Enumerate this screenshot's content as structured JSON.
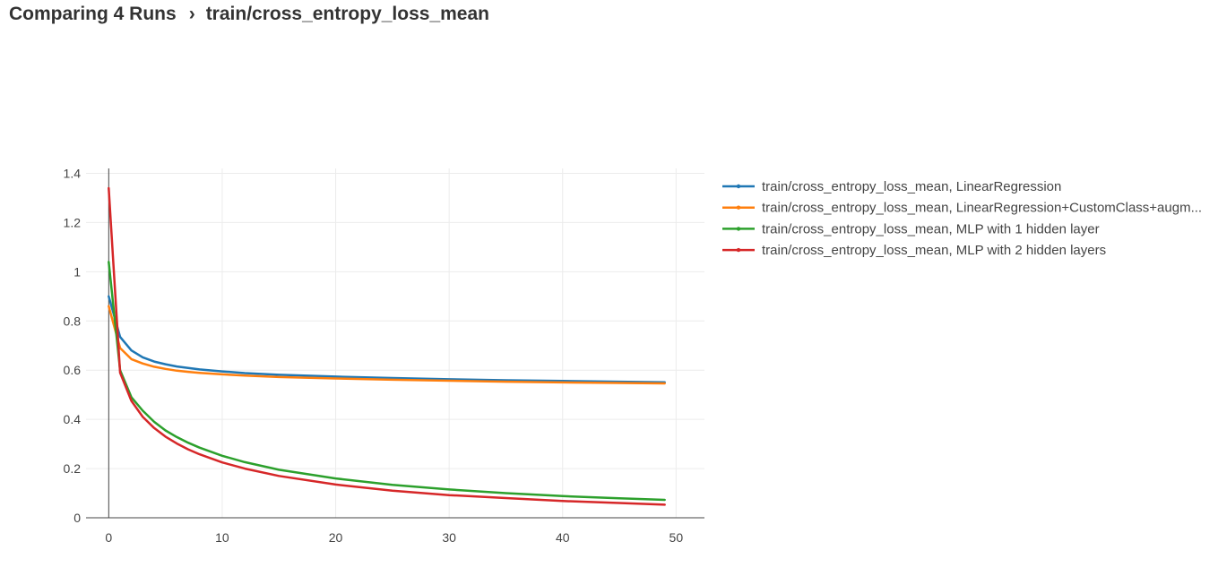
{
  "header": {
    "parent": "Comparing 4 Runs",
    "separator": "›",
    "current": "train/cross_entropy_loss_mean"
  },
  "chart_data": {
    "type": "line",
    "title": "",
    "xlabel": "",
    "ylabel": "",
    "xlim": [
      -2,
      52.5
    ],
    "ylim": [
      0,
      1.42
    ],
    "xticks": [
      0,
      10,
      20,
      30,
      40,
      50
    ],
    "yticks": [
      0,
      0.2,
      0.4,
      0.6,
      0.8,
      1,
      1.2,
      1.4
    ],
    "ytick_labels": [
      "0",
      "0.2",
      "0.4",
      "0.6",
      "0.8",
      "1",
      "1.2",
      "1.4"
    ],
    "grid": true,
    "legend_position": "right",
    "series": [
      {
        "name": "train/cross_entropy_loss_mean, LinearRegression",
        "color": "#1f77b4",
        "x": [
          0,
          1,
          2,
          3,
          4,
          5,
          6,
          7,
          8,
          10,
          12,
          15,
          20,
          25,
          30,
          35,
          40,
          45,
          49
        ],
        "y": [
          0.9,
          0.735,
          0.68,
          0.652,
          0.635,
          0.624,
          0.615,
          0.609,
          0.603,
          0.595,
          0.588,
          0.581,
          0.574,
          0.568,
          0.563,
          0.559,
          0.556,
          0.553,
          0.551
        ]
      },
      {
        "name": "train/cross_entropy_loss_mean, LinearRegression+CustomClass+augm...",
        "color": "#ff7f0e",
        "x": [
          0,
          1,
          2,
          3,
          4,
          5,
          6,
          7,
          8,
          10,
          12,
          15,
          20,
          25,
          30,
          35,
          40,
          45,
          49
        ],
        "y": [
          0.86,
          0.69,
          0.645,
          0.627,
          0.614,
          0.605,
          0.598,
          0.593,
          0.589,
          0.583,
          0.578,
          0.572,
          0.566,
          0.561,
          0.557,
          0.553,
          0.55,
          0.548,
          0.546
        ]
      },
      {
        "name": "train/cross_entropy_loss_mean, MLP with 1 hidden layer",
        "color": "#2ca02c",
        "x": [
          0,
          1,
          2,
          3,
          4,
          5,
          6,
          7,
          8,
          10,
          12,
          15,
          20,
          25,
          30,
          35,
          40,
          45,
          49
        ],
        "y": [
          1.04,
          0.6,
          0.49,
          0.435,
          0.39,
          0.355,
          0.328,
          0.305,
          0.285,
          0.252,
          0.226,
          0.195,
          0.16,
          0.134,
          0.115,
          0.1,
          0.088,
          0.079,
          0.073
        ]
      },
      {
        "name": "train/cross_entropy_loss_mean, MLP with 2 hidden layers",
        "color": "#d62728",
        "x": [
          0,
          1,
          2,
          3,
          4,
          5,
          6,
          7,
          8,
          10,
          12,
          15,
          20,
          25,
          30,
          35,
          40,
          45,
          49
        ],
        "y": [
          1.34,
          0.59,
          0.475,
          0.41,
          0.365,
          0.33,
          0.302,
          0.278,
          0.258,
          0.225,
          0.2,
          0.17,
          0.135,
          0.11,
          0.092,
          0.08,
          0.068,
          0.06,
          0.053
        ]
      }
    ]
  }
}
